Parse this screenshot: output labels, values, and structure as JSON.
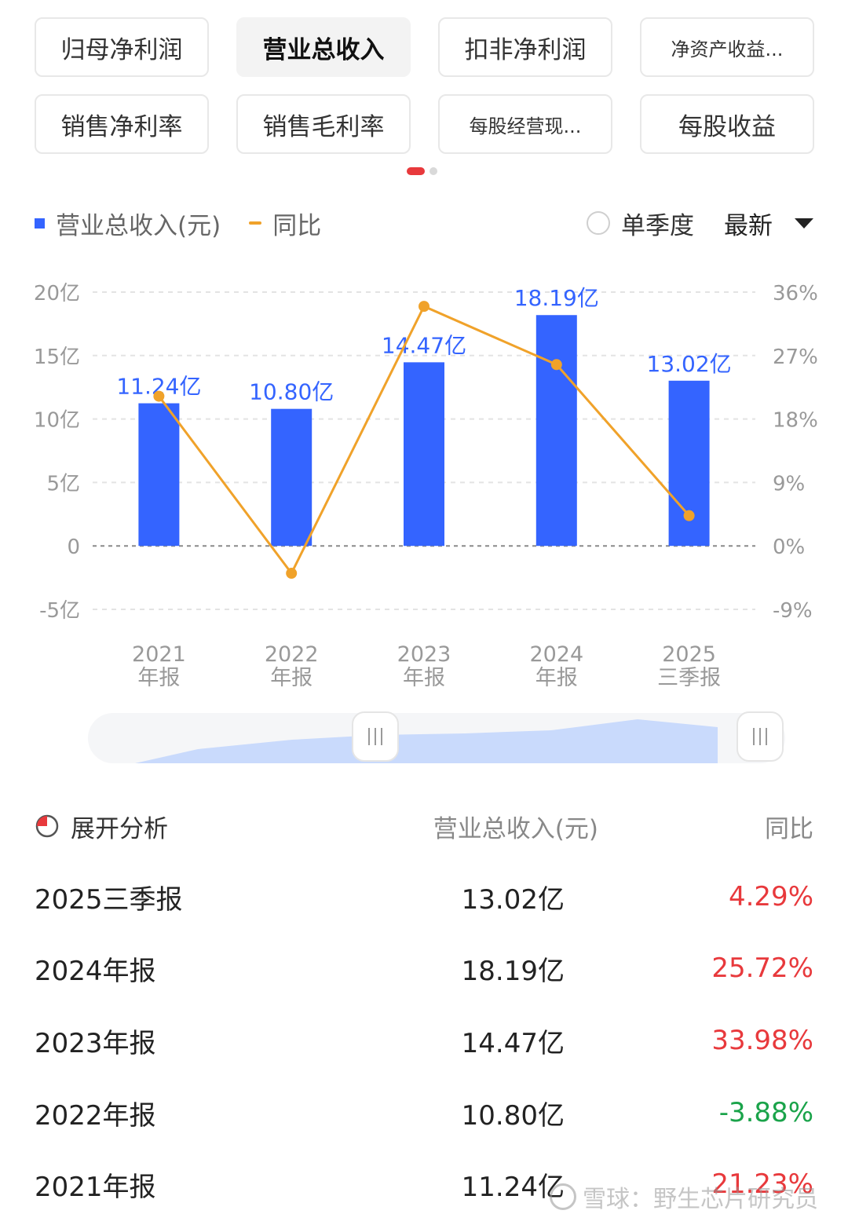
{
  "tabs": [
    {
      "label": "归母净利润",
      "active": false,
      "small": false
    },
    {
      "label": "营业总收入",
      "active": true,
      "small": false
    },
    {
      "label": "扣非净利润",
      "active": false,
      "small": false
    },
    {
      "label": "净资产收益...",
      "active": false,
      "small": true
    },
    {
      "label": "销售净利率",
      "active": false,
      "small": false
    },
    {
      "label": "销售毛利率",
      "active": false,
      "small": false
    },
    {
      "label": "每股经营现...",
      "active": false,
      "small": true
    },
    {
      "label": "每股收益",
      "active": false,
      "small": false
    }
  ],
  "legend": {
    "revenue_label": "营业总收入(元)",
    "yoy_label": "同比",
    "single_quarter_label": "单季度",
    "sort_label": "最新"
  },
  "chart_data": {
    "type": "bar",
    "categories": [
      [
        "2021",
        "年报"
      ],
      [
        "2022",
        "年报"
      ],
      [
        "2023",
        "年报"
      ],
      [
        "2024",
        "年报"
      ],
      [
        "2025",
        "三季报"
      ]
    ],
    "series": [
      {
        "name": "营业总收入(元)",
        "values": [
          11.24,
          10.8,
          14.47,
          18.19,
          13.02
        ],
        "labels": [
          "11.24亿",
          "10.80亿",
          "14.47亿",
          "18.19亿",
          "13.02亿"
        ],
        "color": "#3464ff",
        "axis": "left"
      },
      {
        "name": "同比",
        "type": "line",
        "values": [
          21.23,
          -3.88,
          33.98,
          25.72,
          4.29
        ],
        "color": "#f0a22a",
        "axis": "right"
      }
    ],
    "y_left": {
      "ticks": [
        20,
        15,
        10,
        5,
        0,
        -5
      ],
      "tick_labels": [
        "20亿",
        "15亿",
        "10亿",
        "5亿",
        "0",
        "-5亿"
      ],
      "range": [
        -5,
        20
      ]
    },
    "y_right": {
      "ticks": [
        36,
        27,
        18,
        9,
        0,
        -9
      ],
      "tick_labels": [
        "36%",
        "27%",
        "18%",
        "9%",
        "0%",
        "-9%"
      ],
      "range": [
        -9,
        36
      ]
    },
    "grid": true
  },
  "table": {
    "header": {
      "expand": "展开分析",
      "value": "营业总收入(元)",
      "yoy": "同比"
    },
    "rows": [
      {
        "period": "2025三季报",
        "value": "13.02亿",
        "yoy": "4.29%",
        "trend": "up"
      },
      {
        "period": "2024年报",
        "value": "18.19亿",
        "yoy": "25.72%",
        "trend": "up"
      },
      {
        "period": "2023年报",
        "value": "14.47亿",
        "yoy": "33.98%",
        "trend": "up"
      },
      {
        "period": "2022年报",
        "value": "10.80亿",
        "yoy": "-3.88%",
        "trend": "down"
      },
      {
        "period": "2021年报",
        "value": "11.24亿",
        "yoy": "21.23%",
        "trend": "up"
      }
    ]
  },
  "watermark": "雪球：野生芯片研究员",
  "colors": {
    "accent_red": "#e8393c",
    "bar_blue": "#3464ff",
    "line_orange": "#f0a22a",
    "down_green": "#1aa34a"
  }
}
